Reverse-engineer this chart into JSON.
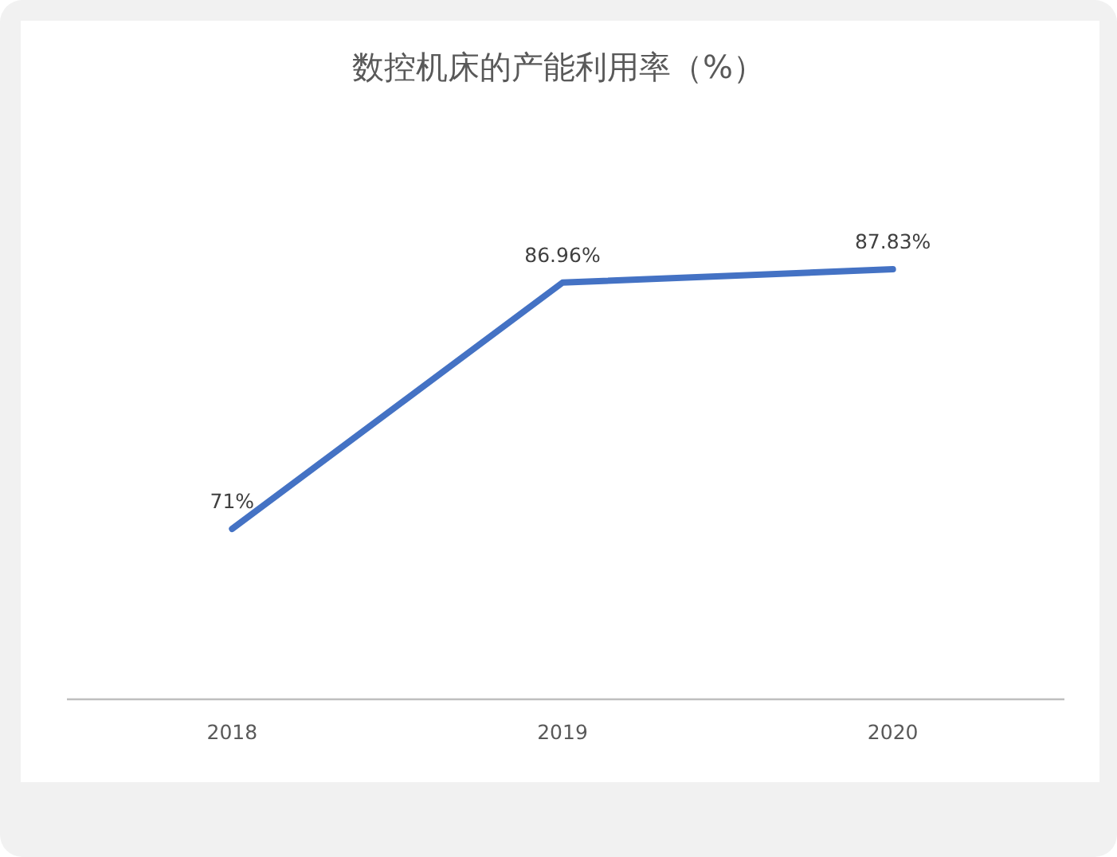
{
  "chart_data": {
    "type": "line",
    "title": "数控机床的产能利用率（%）",
    "categories": [
      "2018",
      "2019",
      "2020"
    ],
    "series": [
      {
        "color": "#4472c4",
        "values": [
          71,
          86.96,
          87.83
        ],
        "value_labels": [
          "71%",
          "86.96%",
          "87.83%"
        ]
      }
    ],
    "marker": "none",
    "line_style": "solid"
  }
}
